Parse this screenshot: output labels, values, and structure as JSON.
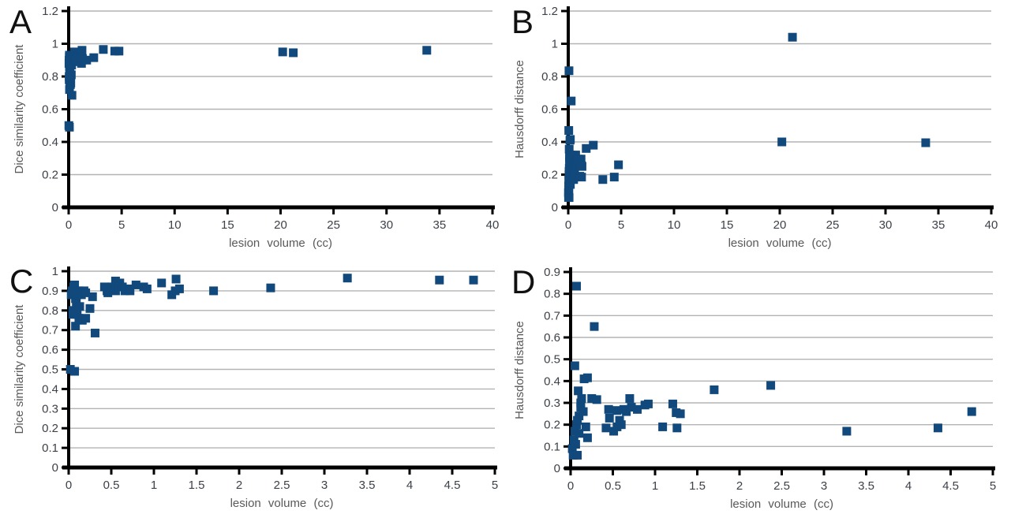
{
  "figure": {
    "background": "#ffffff",
    "panel_labels": [
      "A",
      "B",
      "C",
      "D"
    ]
  },
  "styles": {
    "marker_color": "#11497C",
    "grid_color": "#b3b3b3",
    "axis_color": "#000000",
    "tick_label_color": "#3d4148",
    "axis_title_color": "#595959",
    "panel_letter_color": "#111111"
  },
  "chart_data": [
    {
      "panel": "A",
      "type": "scatter",
      "title": "",
      "xlabel": "lesion volume (cc)",
      "ylabel": "Dice similarity coefficient",
      "xlim": [
        0,
        40
      ],
      "ylim": [
        0,
        1.2
      ],
      "xticks": [
        0,
        5,
        10,
        15,
        20,
        25,
        30,
        35,
        40
      ],
      "yticks": [
        0,
        0.2,
        0.4,
        0.6,
        0.8,
        1,
        1.2
      ],
      "grid": "horizontal",
      "legend": "none",
      "marker": {
        "shape": "square",
        "size": 11
      },
      "x": [
        0.02,
        0.03,
        0.04,
        0.05,
        0.05,
        0.06,
        0.07,
        0.07,
        0.08,
        0.08,
        0.09,
        0.1,
        0.1,
        0.12,
        0.12,
        0.13,
        0.15,
        0.16,
        0.18,
        0.2,
        0.2,
        0.25,
        0.28,
        0.31,
        0.42,
        0.45,
        0.46,
        0.51,
        0.55,
        0.55,
        0.58,
        0.6,
        0.63,
        0.66,
        0.7,
        0.72,
        0.79,
        0.88,
        0.92,
        1.09,
        1.21,
        1.25,
        1.26,
        1.3,
        1.7,
        2.37,
        3.27,
        4.35,
        4.75,
        20.2,
        21.2,
        33.8
      ],
      "y": [
        0.5,
        0.88,
        0.9,
        0.8,
        0.78,
        0.92,
        0.49,
        0.93,
        0.72,
        0.86,
        0.84,
        0.88,
        0.78,
        0.9,
        0.76,
        0.82,
        0.88,
        0.75,
        0.9,
        0.89,
        0.76,
        0.81,
        0.87,
        0.685,
        0.92,
        0.9,
        0.89,
        0.92,
        0.95,
        0.9,
        0.92,
        0.94,
        0.92,
        0.9,
        0.91,
        0.9,
        0.93,
        0.92,
        0.91,
        0.94,
        0.88,
        0.9,
        0.96,
        0.91,
        0.9,
        0.915,
        0.965,
        0.955,
        0.955,
        0.95,
        0.945,
        0.96
      ]
    },
    {
      "panel": "B",
      "type": "scatter",
      "title": "",
      "xlabel": "lesion volume (cc)",
      "ylabel": "Hausdorff distance",
      "xlim": [
        0,
        40
      ],
      "ylim": [
        0,
        1.2
      ],
      "xticks": [
        0,
        5,
        10,
        15,
        20,
        25,
        30,
        35,
        40
      ],
      "yticks": [
        0,
        0.2,
        0.4,
        0.6,
        0.8,
        1,
        1.2
      ],
      "grid": "horizontal",
      "legend": "none",
      "marker": {
        "shape": "square",
        "size": 11
      },
      "x": [
        0.02,
        0.03,
        0.04,
        0.05,
        0.05,
        0.06,
        0.07,
        0.07,
        0.08,
        0.08,
        0.09,
        0.1,
        0.1,
        0.12,
        0.12,
        0.13,
        0.15,
        0.16,
        0.18,
        0.2,
        0.2,
        0.25,
        0.28,
        0.31,
        0.42,
        0.45,
        0.46,
        0.51,
        0.55,
        0.55,
        0.58,
        0.6,
        0.63,
        0.66,
        0.7,
        0.72,
        0.79,
        0.88,
        0.92,
        1.09,
        1.21,
        1.25,
        1.26,
        1.3,
        1.7,
        2.37,
        3.27,
        4.35,
        4.75,
        20.2,
        21.2,
        33.8
      ],
      "y": [
        0.09,
        0.06,
        0.13,
        0.47,
        0.17,
        0.11,
        0.835,
        0.2,
        0.06,
        0.22,
        0.355,
        0.24,
        0.16,
        0.3,
        0.28,
        0.32,
        0.26,
        0.41,
        0.19,
        0.415,
        0.14,
        0.32,
        0.65,
        0.315,
        0.185,
        0.27,
        0.23,
        0.17,
        0.19,
        0.265,
        0.22,
        0.2,
        0.27,
        0.26,
        0.32,
        0.28,
        0.27,
        0.29,
        0.295,
        0.19,
        0.295,
        0.255,
        0.185,
        0.25,
        0.36,
        0.38,
        0.17,
        0.185,
        0.26,
        0.4,
        1.04,
        0.395
      ]
    },
    {
      "panel": "C",
      "type": "scatter",
      "title": "",
      "xlabel": "lesion volume (cc)",
      "ylabel": "Dice similarity coefficient",
      "xlim": [
        0,
        5
      ],
      "ylim": [
        0,
        1
      ],
      "xticks": [
        0,
        0.5,
        1,
        1.5,
        2,
        2.5,
        3,
        3.5,
        4,
        4.5,
        5
      ],
      "yticks": [
        0,
        0.1,
        0.2,
        0.3,
        0.4,
        0.5,
        0.6,
        0.7,
        0.8,
        0.9,
        1
      ],
      "grid": "horizontal",
      "legend": "none",
      "marker": {
        "shape": "square",
        "size": 11
      },
      "x": [
        0.02,
        0.03,
        0.04,
        0.05,
        0.05,
        0.06,
        0.07,
        0.07,
        0.08,
        0.08,
        0.09,
        0.1,
        0.1,
        0.12,
        0.12,
        0.13,
        0.15,
        0.16,
        0.18,
        0.2,
        0.2,
        0.25,
        0.28,
        0.31,
        0.42,
        0.45,
        0.46,
        0.51,
        0.55,
        0.55,
        0.58,
        0.6,
        0.63,
        0.66,
        0.7,
        0.72,
        0.79,
        0.88,
        0.92,
        1.09,
        1.21,
        1.25,
        1.26,
        1.3,
        1.7,
        2.37,
        3.27,
        4.35,
        4.75
      ],
      "y": [
        0.5,
        0.88,
        0.9,
        0.8,
        0.78,
        0.92,
        0.49,
        0.93,
        0.72,
        0.86,
        0.84,
        0.88,
        0.78,
        0.9,
        0.76,
        0.82,
        0.88,
        0.75,
        0.9,
        0.89,
        0.76,
        0.81,
        0.87,
        0.685,
        0.92,
        0.9,
        0.89,
        0.92,
        0.95,
        0.9,
        0.92,
        0.94,
        0.92,
        0.9,
        0.91,
        0.9,
        0.93,
        0.92,
        0.91,
        0.94,
        0.88,
        0.9,
        0.96,
        0.91,
        0.9,
        0.915,
        0.965,
        0.955,
        0.955
      ]
    },
    {
      "panel": "D",
      "type": "scatter",
      "title": "",
      "xlabel": "lesion volume (cc)",
      "ylabel": "Hausdorff distance",
      "xlim": [
        0,
        5
      ],
      "ylim": [
        0,
        0.9
      ],
      "xticks": [
        0,
        0.5,
        1,
        1.5,
        2,
        2.5,
        3,
        3.5,
        4,
        4.5,
        5
      ],
      "yticks": [
        0,
        0.1,
        0.2,
        0.3,
        0.4,
        0.5,
        0.6,
        0.7,
        0.8,
        0.9
      ],
      "grid": "horizontal",
      "legend": "none",
      "marker": {
        "shape": "square",
        "size": 11
      },
      "x": [
        0.02,
        0.03,
        0.04,
        0.05,
        0.05,
        0.06,
        0.07,
        0.07,
        0.08,
        0.08,
        0.09,
        0.1,
        0.1,
        0.12,
        0.12,
        0.13,
        0.15,
        0.16,
        0.18,
        0.2,
        0.2,
        0.25,
        0.28,
        0.31,
        0.42,
        0.45,
        0.46,
        0.51,
        0.55,
        0.55,
        0.58,
        0.6,
        0.63,
        0.66,
        0.7,
        0.72,
        0.79,
        0.88,
        0.92,
        1.09,
        1.21,
        1.25,
        1.26,
        1.3,
        1.7,
        2.37,
        3.27,
        4.35,
        4.75
      ],
      "y": [
        0.09,
        0.06,
        0.13,
        0.47,
        0.17,
        0.11,
        0.835,
        0.2,
        0.06,
        0.22,
        0.355,
        0.24,
        0.16,
        0.3,
        0.28,
        0.32,
        0.26,
        0.41,
        0.19,
        0.415,
        0.14,
        0.32,
        0.65,
        0.315,
        0.185,
        0.27,
        0.23,
        0.17,
        0.19,
        0.265,
        0.22,
        0.2,
        0.27,
        0.26,
        0.32,
        0.28,
        0.27,
        0.29,
        0.295,
        0.19,
        0.295,
        0.255,
        0.185,
        0.25,
        0.36,
        0.38,
        0.17,
        0.185,
        0.26
      ]
    }
  ]
}
